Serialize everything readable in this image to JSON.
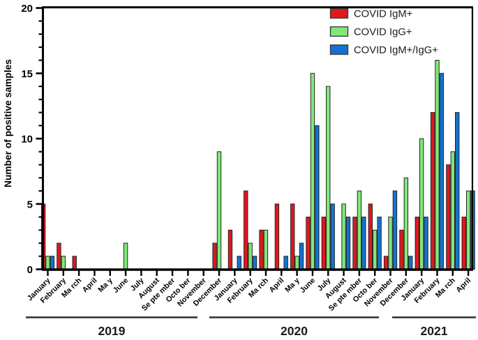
{
  "figure": {
    "ylabel": "Number of positive samples",
    "legend_items": [
      {
        "label": "COVID IgM+",
        "color": "#e1171e",
        "swatch": "red-swatch"
      },
      {
        "label": "COVID IgG+",
        "color": "#82e878",
        "swatch": "green-swatch"
      },
      {
        "label": "COVID IgM+/IgG+",
        "color": "#1273d2",
        "swatch": "blue-swatch"
      }
    ]
  },
  "chart_data": {
    "type": "bar",
    "title": "",
    "xlabel": "",
    "ylabel": "Number of positive samples",
    "ylim": [
      0,
      20
    ],
    "yticks_major": [
      0,
      5,
      10,
      15,
      20
    ],
    "ytick_minor_step": 1,
    "grid": false,
    "legend_position": "top-right-inside",
    "legend": [
      "COVID IgM+",
      "COVID IgG+",
      "COVID IgM+/IgG+"
    ],
    "categories": [
      "January",
      "February",
      "Ma rch",
      "April",
      "Ma y",
      "June",
      "July",
      "August",
      "Se pte mber",
      "Octo ber",
      "November",
      "December",
      "January",
      "February",
      "Ma rch",
      "April",
      "Ma y",
      "June",
      "July",
      "August",
      "Se pte mber",
      "Octo ber",
      "November",
      "December",
      "January",
      "February",
      "Ma rch",
      "April"
    ],
    "year_groups": [
      {
        "label": "2019",
        "start_index": 0,
        "end_index": 11
      },
      {
        "label": "2020",
        "start_index": 12,
        "end_index": 23
      },
      {
        "label": "2021",
        "start_index": 24,
        "end_index": 27
      }
    ],
    "series": [
      {
        "name": "COVID IgM+",
        "color": "#e1171e",
        "values": [
          5,
          2,
          1,
          0,
          0,
          0,
          0,
          0,
          0,
          0,
          0,
          2,
          3,
          6,
          3,
          5,
          5,
          4,
          4,
          0,
          4,
          5,
          1,
          3,
          4,
          12,
          8,
          4
        ]
      },
      {
        "name": "COVID IgG+",
        "color": "#82e878",
        "values": [
          1,
          1,
          0,
          0,
          0,
          2,
          0,
          0,
          0,
          0,
          0,
          9,
          0,
          2,
          3,
          0,
          1,
          15,
          14,
          5,
          6,
          3,
          4,
          7,
          10,
          16,
          9,
          6
        ]
      },
      {
        "name": "COVID IgM+/IgG+",
        "color": "#1273d2",
        "values": [
          1,
          0,
          0,
          0,
          0,
          0,
          0,
          0,
          0,
          0,
          0,
          0,
          1,
          1,
          0,
          1,
          2,
          11,
          5,
          4,
          4,
          4,
          6,
          1,
          4,
          15,
          12,
          6
        ]
      }
    ]
  }
}
